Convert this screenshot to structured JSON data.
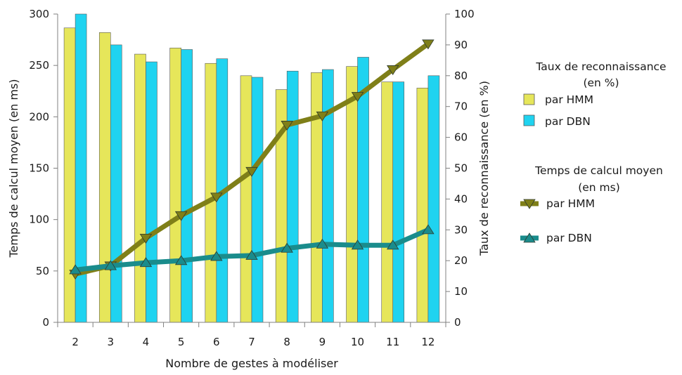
{
  "colors": {
    "hmm_bar": "#e6e65a",
    "dbn_bar": "#1fd3f0",
    "hmm_line": "#7f7f18",
    "dbn_line": "#1a8c8c",
    "axis": "#808080",
    "grid": "#b3b3b3"
  },
  "chart_data": {
    "type": "bar",
    "xlabel": "Nombre de gestes à modéliser",
    "ylabel_left": "Temps de calcul moyen (en ms)",
    "ylabel_right": "Taux de reconnaissance (en %)",
    "categories": [
      "2",
      "3",
      "4",
      "5",
      "6",
      "7",
      "8",
      "9",
      "10",
      "11",
      "12"
    ],
    "ylim_left": [
      0,
      300
    ],
    "ylim_right": [
      0,
      100
    ],
    "left_ticks": [
      "0",
      "50",
      "100",
      "150",
      "200",
      "250",
      "300"
    ],
    "right_ticks": [
      "0",
      "10",
      "20",
      "30",
      "40",
      "50",
      "60",
      "70",
      "80",
      "90",
      "100"
    ],
    "bar_series": [
      {
        "name": "par HMM",
        "axis": "right",
        "values": [
          95.5,
          94,
          87,
          89,
          84,
          80,
          75.5,
          81,
          83,
          78,
          76
        ]
      },
      {
        "name": "par DBN",
        "axis": "right",
        "values": [
          100,
          90,
          84.5,
          88.5,
          85.5,
          79.5,
          81.5,
          82,
          86,
          78,
          80
        ]
      }
    ],
    "line_series": [
      {
        "name": "par HMM",
        "axis": "left",
        "marker": "triangle-down",
        "values": [
          47,
          55,
          82,
          104,
          122,
          147,
          192,
          201,
          220,
          246,
          271
        ]
      },
      {
        "name": "par DBN",
        "axis": "left",
        "marker": "triangle-up",
        "values": [
          51,
          55,
          58,
          60,
          64,
          65,
          72,
          76,
          75,
          75,
          90
        ]
      }
    ],
    "legend": {
      "position": "right",
      "bar_group_title": "Taux de reconnaissance\n(en %)",
      "line_group_title": "Temps de calcul moyen\n(en ms)",
      "hmm_label": "par HMM",
      "dbn_label": "par DBN"
    },
    "grid": false
  }
}
